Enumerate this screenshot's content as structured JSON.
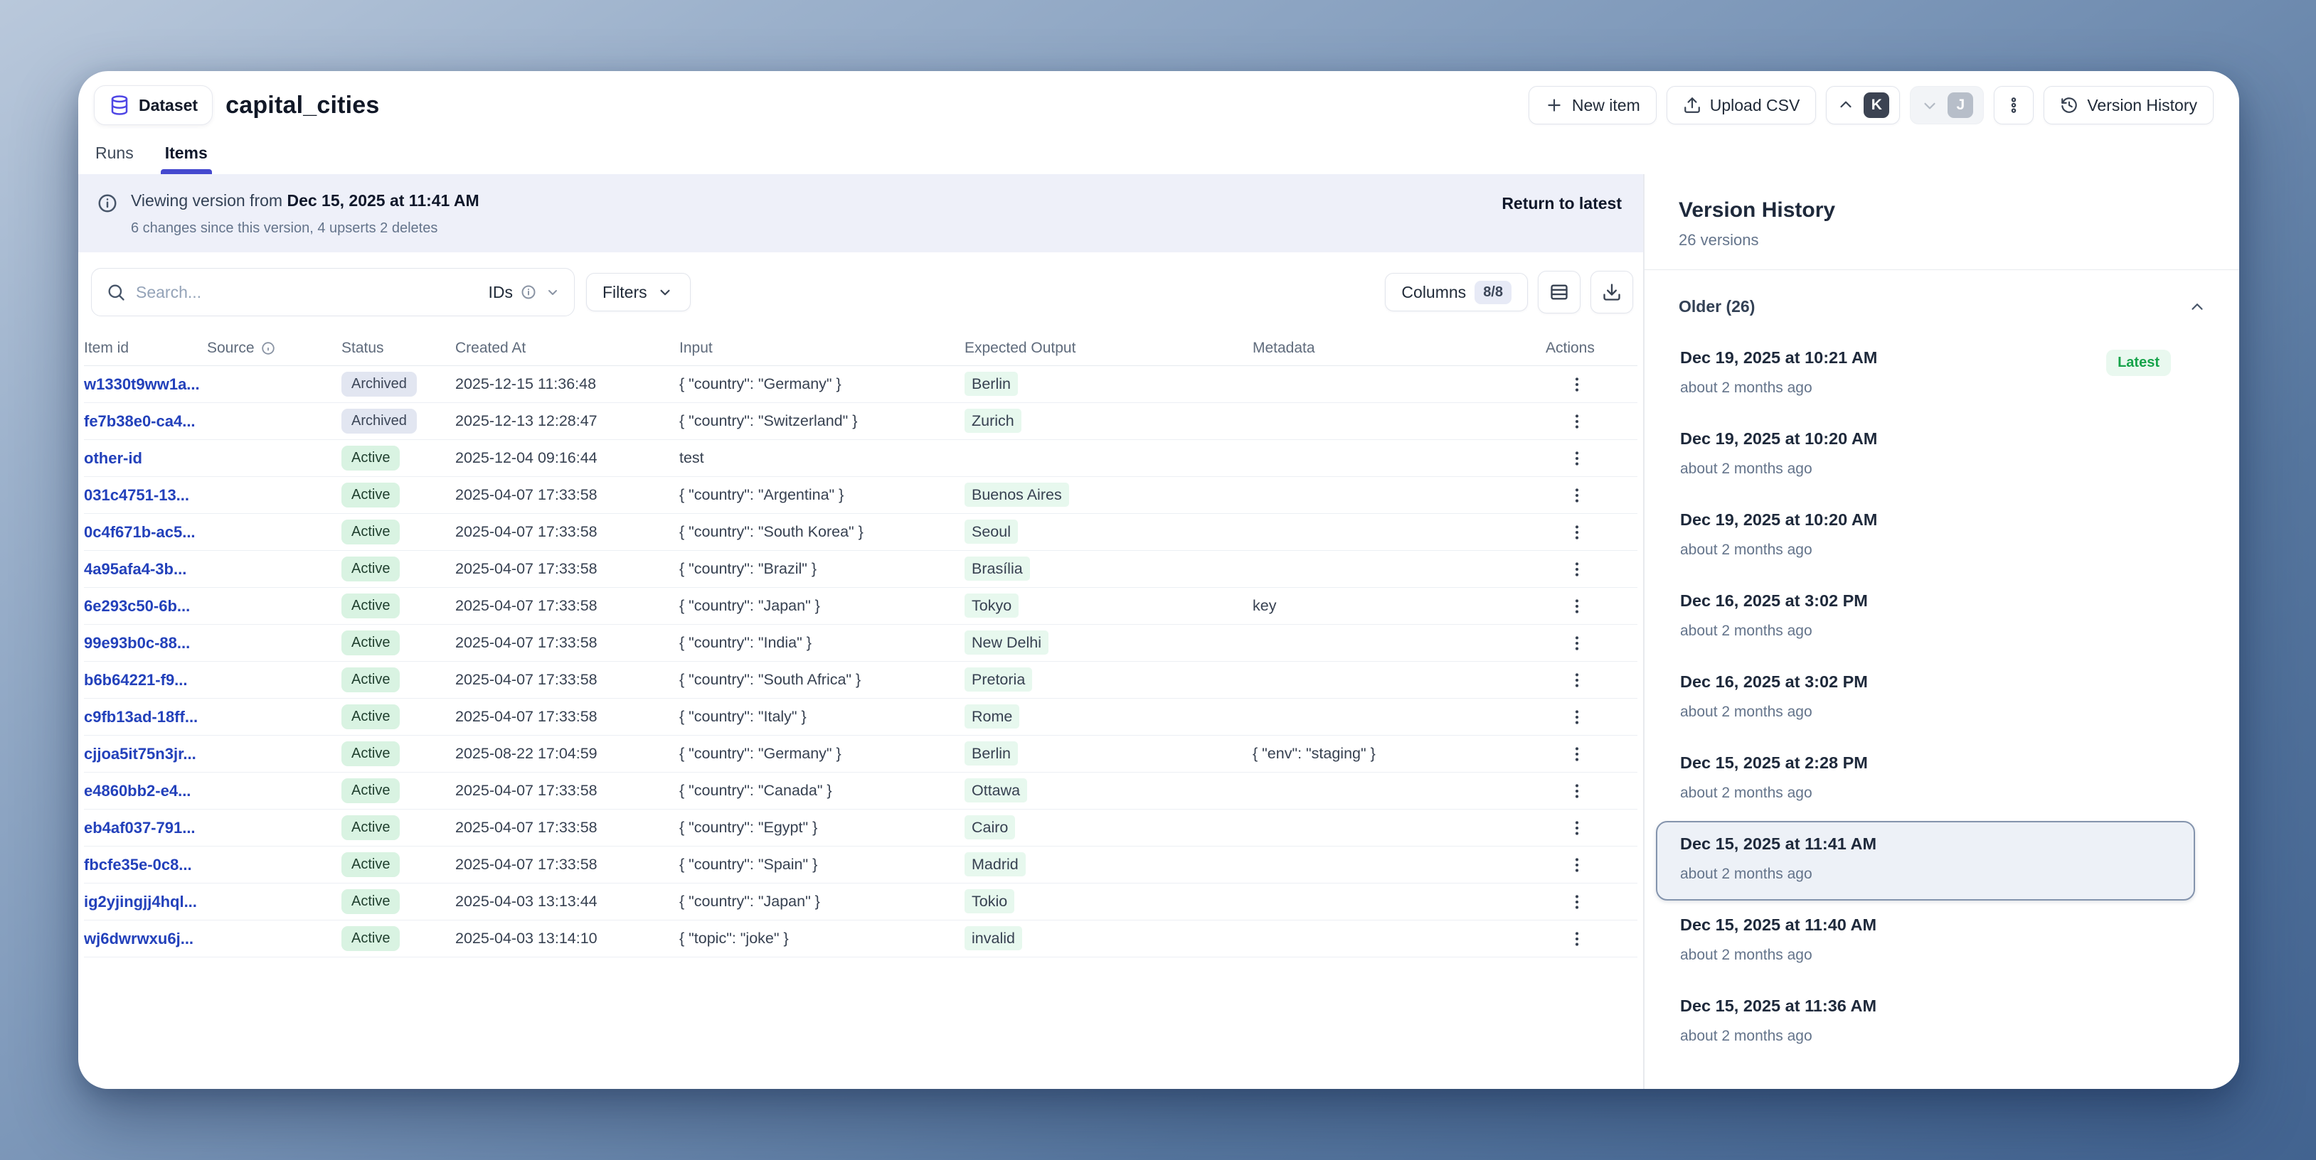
{
  "header": {
    "badge_label": "Dataset",
    "title": "capital_cities",
    "tabs": [
      {
        "label": "Runs",
        "active": false
      },
      {
        "label": "Items",
        "active": true
      }
    ],
    "actions": {
      "new_item_label": "New item",
      "upload_csv_label": "Upload CSV",
      "avatar_k": "K",
      "avatar_j": "J",
      "version_history_label": "Version History"
    }
  },
  "banner": {
    "prefix": "Viewing version from ",
    "version_date": "Dec 15, 2025 at 11:41 AM",
    "subtext": "6 changes since this version, 4 upserts 2 deletes",
    "return_link": "Return to latest"
  },
  "toolbar": {
    "search_placeholder": "Search...",
    "ids_label": "IDs",
    "filters_label": "Filters",
    "columns_label": "Columns",
    "columns_count": "8/8"
  },
  "table": {
    "columns": [
      "Item id",
      "Source",
      "Status",
      "Created At",
      "Input",
      "Expected Output",
      "Metadata",
      "Actions"
    ],
    "rows": [
      {
        "id": "w1330t9ww1a...",
        "source": "",
        "status": "Archived",
        "created_at": "2025-12-15 11:36:48",
        "input": "{ \"country\": \"Germany\" }",
        "expected_output": "Berlin",
        "metadata": ""
      },
      {
        "id": "fe7b38e0-ca4...",
        "source": "",
        "status": "Archived",
        "created_at": "2025-12-13 12:28:47",
        "input": "{ \"country\": \"Switzerland\" }",
        "expected_output": "Zurich",
        "metadata": ""
      },
      {
        "id": "other-id",
        "source": "",
        "status": "Active",
        "created_at": "2025-12-04 09:16:44",
        "input": "test",
        "expected_output": "",
        "metadata": ""
      },
      {
        "id": "031c4751-13...",
        "source": "",
        "status": "Active",
        "created_at": "2025-04-07 17:33:58",
        "input": "{ \"country\": \"Argentina\" }",
        "expected_output": "Buenos Aires",
        "metadata": ""
      },
      {
        "id": "0c4f671b-ac5...",
        "source": "",
        "status": "Active",
        "created_at": "2025-04-07 17:33:58",
        "input": "{ \"country\": \"South Korea\" }",
        "expected_output": "Seoul",
        "metadata": ""
      },
      {
        "id": "4a95afa4-3b...",
        "source": "",
        "status": "Active",
        "created_at": "2025-04-07 17:33:58",
        "input": "{ \"country\": \"Brazil\" }",
        "expected_output": "Brasília",
        "metadata": ""
      },
      {
        "id": "6e293c50-6b...",
        "source": "",
        "status": "Active",
        "created_at": "2025-04-07 17:33:58",
        "input": "{ \"country\": \"Japan\" }",
        "expected_output": "Tokyo",
        "metadata": "key"
      },
      {
        "id": "99e93b0c-88...",
        "source": "",
        "status": "Active",
        "created_at": "2025-04-07 17:33:58",
        "input": "{ \"country\": \"India\" }",
        "expected_output": "New Delhi",
        "metadata": ""
      },
      {
        "id": "b6b64221-f9...",
        "source": "",
        "status": "Active",
        "created_at": "2025-04-07 17:33:58",
        "input": "{ \"country\": \"South Africa\" }",
        "expected_output": "Pretoria",
        "metadata": ""
      },
      {
        "id": "c9fb13ad-18ff...",
        "source": "",
        "status": "Active",
        "created_at": "2025-04-07 17:33:58",
        "input": "{ \"country\": \"Italy\" }",
        "expected_output": "Rome",
        "metadata": ""
      },
      {
        "id": "cjjoa5it75n3jr...",
        "source": "",
        "status": "Active",
        "created_at": "2025-08-22 17:04:59",
        "input": "{ \"country\": \"Germany\" }",
        "expected_output": "Berlin",
        "metadata": "{ \"env\": \"staging\" }"
      },
      {
        "id": "e4860bb2-e4...",
        "source": "",
        "status": "Active",
        "created_at": "2025-04-07 17:33:58",
        "input": "{ \"country\": \"Canada\" }",
        "expected_output": "Ottawa",
        "metadata": ""
      },
      {
        "id": "eb4af037-791...",
        "source": "",
        "status": "Active",
        "created_at": "2025-04-07 17:33:58",
        "input": "{ \"country\": \"Egypt\" }",
        "expected_output": "Cairo",
        "metadata": ""
      },
      {
        "id": "fbcfe35e-0c8...",
        "source": "",
        "status": "Active",
        "created_at": "2025-04-07 17:33:58",
        "input": "{ \"country\": \"Spain\" }",
        "expected_output": "Madrid",
        "metadata": ""
      },
      {
        "id": "ig2yjingjj4hql...",
        "source": "",
        "status": "Active",
        "created_at": "2025-04-03 13:13:44",
        "input": "{ \"country\": \"Japan\" }",
        "expected_output": "Tokio",
        "metadata": ""
      },
      {
        "id": "wj6dwrwxu6j...",
        "source": "",
        "status": "Active",
        "created_at": "2025-04-03 13:14:10",
        "input": "{ \"topic\": \"joke\" }",
        "expected_output": "invalid",
        "metadata": ""
      }
    ]
  },
  "version_history": {
    "title": "Version History",
    "count_label": "26 versions",
    "section_label": "Older (26)",
    "latest_badge_label": "Latest",
    "items": [
      {
        "date": "Dec 19, 2025 at 10:21 AM",
        "ago": "about 2 months ago",
        "latest": true,
        "selected": false
      },
      {
        "date": "Dec 19, 2025 at 10:20 AM",
        "ago": "about 2 months ago",
        "latest": false,
        "selected": false
      },
      {
        "date": "Dec 19, 2025 at 10:20 AM",
        "ago": "about 2 months ago",
        "latest": false,
        "selected": false
      },
      {
        "date": "Dec 16, 2025 at 3:02 PM",
        "ago": "about 2 months ago",
        "latest": false,
        "selected": false
      },
      {
        "date": "Dec 16, 2025 at 3:02 PM",
        "ago": "about 2 months ago",
        "latest": false,
        "selected": false
      },
      {
        "date": "Dec 15, 2025 at 2:28 PM",
        "ago": "about 2 months ago",
        "latest": false,
        "selected": false
      },
      {
        "date": "Dec 15, 2025 at 11:41 AM",
        "ago": "about 2 months ago",
        "latest": false,
        "selected": true
      },
      {
        "date": "Dec 15, 2025 at 11:40 AM",
        "ago": "about 2 months ago",
        "latest": false,
        "selected": false
      },
      {
        "date": "Dec 15, 2025 at 11:36 AM",
        "ago": "about 2 months ago",
        "latest": false,
        "selected": false
      }
    ]
  },
  "colors": {
    "accent_indigo": "#4549cf",
    "link_blue": "#2341bb",
    "active_pill_bg": "#d9f3e2",
    "archived_pill_bg": "#e2e6f1",
    "latest_green": "#16a34a",
    "banner_bg": "#eef0f9"
  }
}
